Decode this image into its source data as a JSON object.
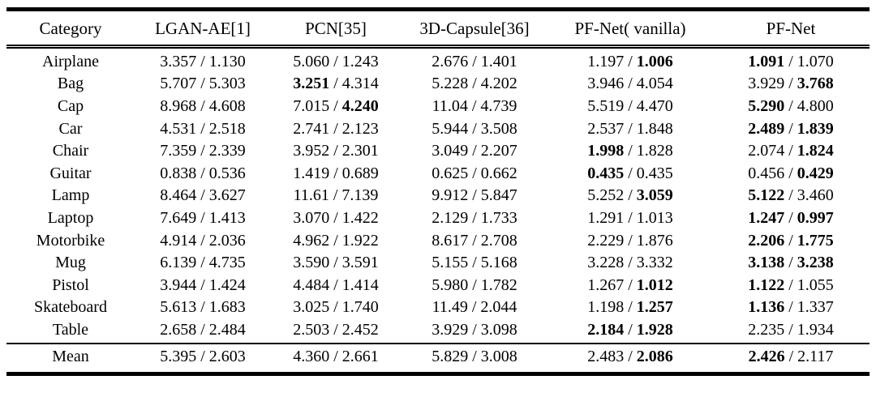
{
  "table": {
    "description": "Per-category results table comparing shape completion methods; each cell is a pair of metric values separated by a slash, bold marks best result",
    "columns": [
      "Category",
      "LGAN-AE[1]",
      "PCN[35]",
      "3D-Capsule[36]",
      "PF-Net( vanilla)",
      "PF-Net"
    ],
    "value_separator": " / ",
    "rows": [
      {
        "category": "Airplane",
        "cells": [
          [
            "3.357",
            "1.130",
            0,
            0
          ],
          [
            "5.060",
            "1.243",
            0,
            0
          ],
          [
            "2.676",
            "1.401",
            0,
            0
          ],
          [
            "1.197",
            "1.006",
            0,
            1
          ],
          [
            "1.091",
            "1.070",
            1,
            0
          ]
        ]
      },
      {
        "category": "Bag",
        "cells": [
          [
            "5.707",
            "5.303",
            0,
            0
          ],
          [
            "3.251",
            "4.314",
            1,
            0
          ],
          [
            "5.228",
            "4.202",
            0,
            0
          ],
          [
            "3.946",
            "4.054",
            0,
            0
          ],
          [
            "3.929",
            "3.768",
            0,
            1
          ]
        ]
      },
      {
        "category": "Cap",
        "cells": [
          [
            "8.968",
            "4.608",
            0,
            0
          ],
          [
            "7.015",
            "4.240",
            0,
            1
          ],
          [
            "11.04",
            "4.739",
            0,
            0
          ],
          [
            "5.519",
            "4.470",
            0,
            0
          ],
          [
            "5.290",
            "4.800",
            1,
            0
          ]
        ]
      },
      {
        "category": "Car",
        "cells": [
          [
            "4.531",
            "2.518",
            0,
            0
          ],
          [
            "2.741",
            "2.123",
            0,
            0
          ],
          [
            "5.944",
            "3.508",
            0,
            0
          ],
          [
            "2.537",
            "1.848",
            0,
            0
          ],
          [
            "2.489",
            "1.839",
            1,
            1
          ]
        ]
      },
      {
        "category": "Chair",
        "cells": [
          [
            "7.359",
            "2.339",
            0,
            0
          ],
          [
            "3.952",
            "2.301",
            0,
            0
          ],
          [
            "3.049",
            "2.207",
            0,
            0
          ],
          [
            "1.998",
            "1.828",
            1,
            0
          ],
          [
            "2.074",
            "1.824",
            0,
            1
          ]
        ]
      },
      {
        "category": "Guitar",
        "cells": [
          [
            "0.838",
            "0.536",
            0,
            0
          ],
          [
            "1.419",
            "0.689",
            0,
            0
          ],
          [
            "0.625",
            "0.662",
            0,
            0
          ],
          [
            "0.435",
            "0.435",
            1,
            0
          ],
          [
            "0.456",
            "0.429",
            0,
            1
          ]
        ]
      },
      {
        "category": "Lamp",
        "cells": [
          [
            "8.464",
            "3.627",
            0,
            0
          ],
          [
            "11.61",
            "7.139",
            0,
            0
          ],
          [
            "9.912",
            "5.847",
            0,
            0
          ],
          [
            "5.252",
            "3.059",
            0,
            1
          ],
          [
            "5.122",
            "3.460",
            1,
            0
          ]
        ]
      },
      {
        "category": "Laptop",
        "cells": [
          [
            "7.649",
            "1.413",
            0,
            0
          ],
          [
            "3.070",
            "1.422",
            0,
            0
          ],
          [
            "2.129",
            "1.733",
            0,
            0
          ],
          [
            "1.291",
            "1.013",
            0,
            0
          ],
          [
            "1.247",
            "0.997",
            1,
            1
          ]
        ]
      },
      {
        "category": "Motorbike",
        "cells": [
          [
            "4.914",
            "2.036",
            0,
            0
          ],
          [
            "4.962",
            "1.922",
            0,
            0
          ],
          [
            "8.617",
            "2.708",
            0,
            0
          ],
          [
            "2.229",
            "1.876",
            0,
            0
          ],
          [
            "2.206",
            "1.775",
            1,
            1
          ]
        ]
      },
      {
        "category": "Mug",
        "cells": [
          [
            "6.139",
            "4.735",
            0,
            0
          ],
          [
            "3.590",
            "3.591",
            0,
            0
          ],
          [
            "5.155",
            "5.168",
            0,
            0
          ],
          [
            "3.228",
            "3.332",
            0,
            0
          ],
          [
            "3.138",
            "3.238",
            1,
            1
          ]
        ]
      },
      {
        "category": "Pistol",
        "cells": [
          [
            "3.944",
            "1.424",
            0,
            0
          ],
          [
            "4.484",
            "1.414",
            0,
            0
          ],
          [
            "5.980",
            "1.782",
            0,
            0
          ],
          [
            "1.267",
            "1.012",
            0,
            1
          ],
          [
            "1.122",
            "1.055",
            1,
            0
          ]
        ]
      },
      {
        "category": "Skateboard",
        "cells": [
          [
            "5.613",
            "1.683",
            0,
            0
          ],
          [
            "3.025",
            "1.740",
            0,
            0
          ],
          [
            "11.49",
            "2.044",
            0,
            0
          ],
          [
            "1.198",
            "1.257",
            0,
            1
          ],
          [
            "1.136",
            "1.337",
            1,
            0
          ]
        ]
      },
      {
        "category": "Table",
        "cells": [
          [
            "2.658",
            "2.484",
            0,
            0
          ],
          [
            "2.503",
            "2.452",
            0,
            0
          ],
          [
            "3.929",
            "3.098",
            0,
            0
          ],
          [
            "2.184",
            "1.928",
            1,
            1
          ],
          [
            "2.235",
            "1.934",
            0,
            0
          ]
        ]
      }
    ],
    "mean_row": {
      "category": "Mean",
      "cells": [
        [
          "5.395",
          "2.603",
          0,
          0
        ],
        [
          "4.360",
          "2.661",
          0,
          0
        ],
        [
          "5.829",
          "3.008",
          0,
          0
        ],
        [
          "2.483",
          "2.086",
          0,
          1
        ],
        [
          "2.426",
          "2.117",
          1,
          0
        ]
      ]
    }
  }
}
